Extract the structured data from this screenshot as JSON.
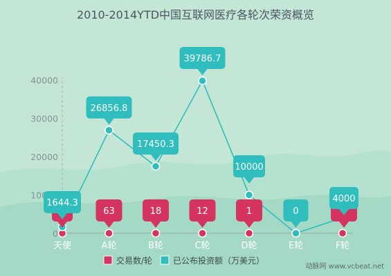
{
  "chart_data": {
    "type": "line",
    "title": "2010-2014YTD中国互联网医疗各轮次荣资概览",
    "categories": [
      "天使",
      "A轮",
      "B轮",
      "C轮",
      "D轮",
      "E轮",
      "F轮"
    ],
    "yticks": [
      "0",
      "10000",
      "20000",
      "30000",
      "40000"
    ],
    "ylim": [
      0,
      45000
    ],
    "grid": false,
    "legend_position": "bottom-center",
    "series": [
      {
        "name": "已公布投资额（万美元）",
        "color": "#2fbdbd",
        "values": [
          1644.3,
          26856.8,
          17450.3,
          39786.7,
          10000,
          0,
          4000
        ],
        "labels": [
          "1644.3",
          "26856.8",
          "17450.3",
          "39786.7",
          "10000",
          "0",
          "4000"
        ]
      },
      {
        "name": "交易数/轮",
        "color": "#d4345f",
        "values": [
          74,
          63,
          18,
          12,
          1,
          0,
          0
        ],
        "labels": [
          "",
          "63",
          "18",
          "12",
          "1",
          "",
          ""
        ]
      }
    ]
  },
  "watermark": "动脉网 www.vcbeat.net"
}
